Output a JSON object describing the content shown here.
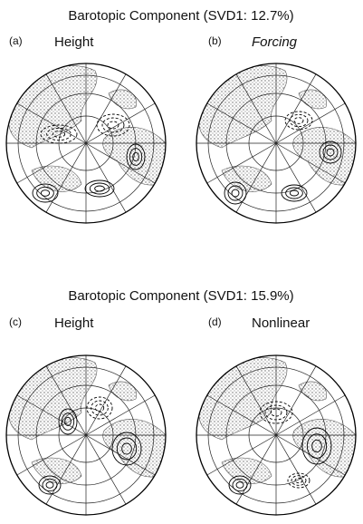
{
  "figure": {
    "rows": [
      {
        "title": "Barotopic Component (SVD1: 12.7%)",
        "panels": [
          {
            "label": "(a)",
            "name": "Height"
          },
          {
            "label": "(b)",
            "name": "Forcing"
          }
        ]
      },
      {
        "title": "Barotopic Component (SVD1: 15.9%)",
        "panels": [
          {
            "label": "(c)",
            "name": "Height"
          },
          {
            "label": "(d)",
            "name": "Nonlinear"
          }
        ]
      }
    ]
  }
}
